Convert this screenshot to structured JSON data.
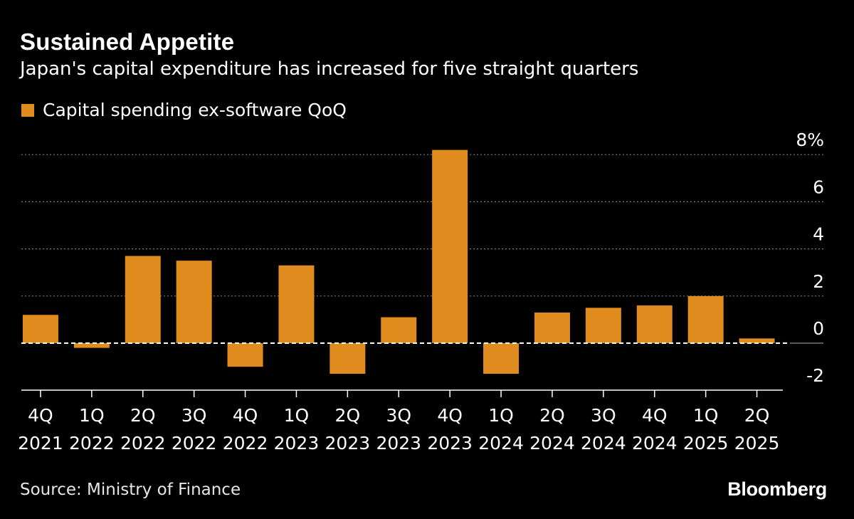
{
  "title": "Sustained Appetite",
  "subtitle": "Japan's capital expenditure has increased for five straight quarters",
  "source": "Source: Ministry of Finance",
  "brand": "Bloomberg",
  "colors": {
    "bar": "#e18c1e",
    "grid": "#7a7a7a",
    "zero": "#ffffff",
    "background": "#000000"
  },
  "chart_data": {
    "type": "bar",
    "title": "Sustained Appetite",
    "subtitle": "Japan's capital expenditure has increased for five straight quarters",
    "legend": [
      "Capital spending ex-software QoQ"
    ],
    "legend_position": "top-left",
    "categories": [
      [
        "4Q",
        "2021"
      ],
      [
        "1Q",
        "2022"
      ],
      [
        "2Q",
        "2022"
      ],
      [
        "3Q",
        "2022"
      ],
      [
        "4Q",
        "2022"
      ],
      [
        "1Q",
        "2023"
      ],
      [
        "2Q",
        "2023"
      ],
      [
        "3Q",
        "2023"
      ],
      [
        "4Q",
        "2023"
      ],
      [
        "1Q",
        "2024"
      ],
      [
        "2Q",
        "2024"
      ],
      [
        "3Q",
        "2024"
      ],
      [
        "4Q",
        "2024"
      ],
      [
        "1Q",
        "2025"
      ],
      [
        "2Q",
        "2025"
      ]
    ],
    "series": [
      {
        "name": "Capital spending ex-software QoQ",
        "values": [
          1.2,
          -0.2,
          3.7,
          3.5,
          -1.0,
          3.3,
          -1.3,
          1.1,
          8.2,
          -1.3,
          1.3,
          1.5,
          1.6,
          2.0,
          0.2
        ]
      }
    ],
    "yticks": [
      -2,
      0,
      2,
      4,
      6,
      8
    ],
    "ytick_labels": [
      "-2",
      "0",
      "2",
      "4",
      "6",
      "8%"
    ],
    "ylim": [
      -2,
      8
    ],
    "y_axis_side": "right",
    "grid": "horizontal dotted",
    "xlabel": "",
    "ylabel": ""
  }
}
